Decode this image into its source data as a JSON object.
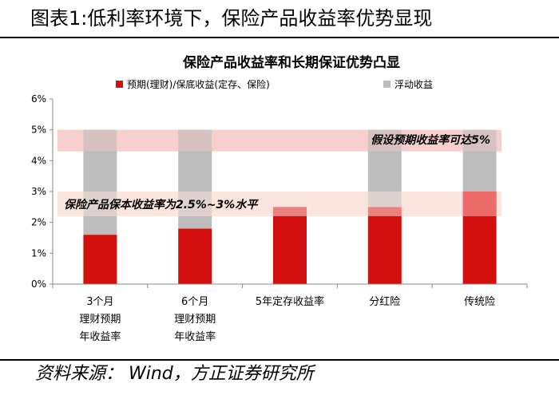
{
  "figure": {
    "title": "图表1:低利率环境下，保险产品收益率优势显现",
    "source": "资料来源： Wind，方正证券研究所"
  },
  "colors": {
    "fixed": "#d40f10",
    "floating": "#bdbdbd",
    "band_upper": "#f6c8c8",
    "band_lower": "#fbe3dd",
    "chuantong_upper": "#ec6a6a"
  },
  "chart_data": {
    "type": "bar",
    "stacked": true,
    "title": "保险产品收益率和长期保证优势凸显",
    "categories": [
      "3个月\n理财预期\n年收益率",
      "6个月\n理财预期\n年收益率",
      "5年定存收益率",
      "分红险",
      "传统险"
    ],
    "series": [
      {
        "name": "预期(理财)/保底收益(定存、保险)",
        "values": [
          1.6,
          1.8,
          2.5,
          2.5,
          3.0
        ]
      },
      {
        "name": "浮动收益",
        "values": [
          3.4,
          3.2,
          0,
          2.5,
          2.0
        ]
      }
    ],
    "ylim": [
      0,
      6
    ],
    "yticks": [
      "0%",
      "1%",
      "2%",
      "3%",
      "4%",
      "5%",
      "6%"
    ],
    "legend_position": "top",
    "grid": false,
    "annotations": [
      {
        "text": "假设预期收益率可达5%",
        "range": [
          4.3,
          5.0
        ]
      },
      {
        "text": "保险产品保本收益率为2.5%~3%水平",
        "range": [
          2.2,
          3.0
        ]
      }
    ]
  }
}
